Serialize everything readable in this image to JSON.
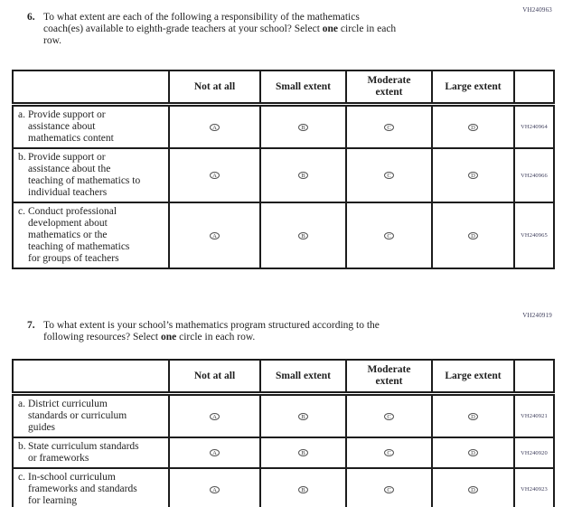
{
  "questions": [
    {
      "number": "6.",
      "page_code": "VH240963",
      "prompt_before": "To what extent are each of the following a responsibility of the mathematics\ncoach(es) available to eighth-grade teachers at your school? Select ",
      "prompt_bold": "one",
      "prompt_after": " circle in each\nrow.",
      "table": {
        "col_headers": [
          "Not at all",
          "Small extent",
          "Moderate\nextent",
          "Large extent"
        ],
        "rows": [
          {
            "letter": "a.",
            "label": "Provide support or\nassistance about\nmathematics content",
            "options": [
              "A",
              "B",
              "C",
              "D"
            ],
            "code": "VH240964"
          },
          {
            "letter": "b.",
            "label": "Provide support or\nassistance about the\nteaching of mathematics to\nindividual teachers",
            "options": [
              "A",
              "B",
              "C",
              "D"
            ],
            "code": "VH240966"
          },
          {
            "letter": "c.",
            "label": "Conduct professional\ndevelopment about\nmathematics or the\nteaching of mathematics\nfor groups of teachers",
            "options": [
              "A",
              "B",
              "C",
              "D"
            ],
            "code": "VH240965"
          }
        ]
      }
    },
    {
      "number": "7.",
      "page_code": "VH240919",
      "prompt_before": "To what extent is your school’s mathematics program structured according to the\nfollowing resources? Select ",
      "prompt_bold": "one",
      "prompt_after": " circle in each row.",
      "table": {
        "col_headers": [
          "Not at all",
          "Small extent",
          "Moderate\nextent",
          "Large extent"
        ],
        "rows": [
          {
            "letter": "a.",
            "label": "District curriculum\nstandards or curriculum\nguides",
            "options": [
              "A",
              "B",
              "C",
              "D"
            ],
            "code": "VH240921"
          },
          {
            "letter": "b.",
            "label": "State curriculum standards\nor frameworks",
            "options": [
              "A",
              "B",
              "C",
              "D"
            ],
            "code": "VH240920"
          },
          {
            "letter": "c.",
            "label": "In-school curriculum\nframeworks and standards\nfor learning",
            "options": [
              "A",
              "B",
              "C",
              "D"
            ],
            "code": "VH240923"
          }
        ]
      }
    }
  ],
  "colors": {
    "text": "#1f1f1f",
    "border": "#1c1c1c",
    "code_text": "#3c3c5a"
  }
}
